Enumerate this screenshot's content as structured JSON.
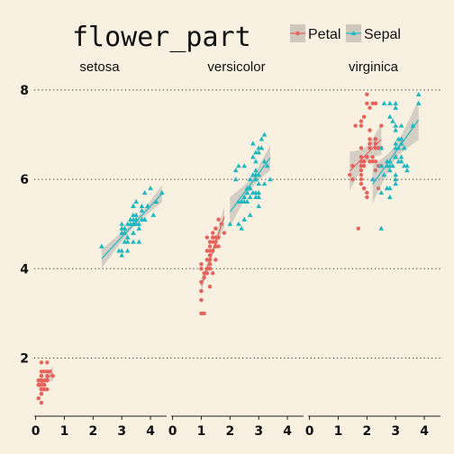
{
  "chart_data": {
    "type": "scatter",
    "title": "flower_part",
    "legend": {
      "placement": "top-right",
      "entries": [
        {
          "name": "Petal",
          "color": "#e8625c",
          "marker": "circle"
        },
        {
          "name": "Sepal",
          "color": "#1fb8c0",
          "marker": "triangle"
        }
      ]
    },
    "facets": [
      "setosa",
      "versicolor",
      "virginica"
    ],
    "xlim": [
      -0.05,
      4.5
    ],
    "ylim": [
      0.7,
      8.3
    ],
    "x_ticks": [
      0,
      1,
      2,
      3,
      4
    ],
    "y_ticks": [
      2,
      4,
      6,
      8
    ],
    "grid": "horizontal dotted",
    "smoother": "linear fit with grey confidence band",
    "series": [
      {
        "facet": "setosa",
        "name": "Petal",
        "points": [
          [
            0.1,
            1.4
          ],
          [
            0.2,
            1.4
          ],
          [
            0.2,
            1.3
          ],
          [
            0.2,
            1.5
          ],
          [
            0.2,
            1.4
          ],
          [
            0.4,
            1.7
          ],
          [
            0.3,
            1.4
          ],
          [
            0.2,
            1.5
          ],
          [
            0.2,
            1.4
          ],
          [
            0.1,
            1.5
          ],
          [
            0.2,
            1.5
          ],
          [
            0.2,
            1.6
          ],
          [
            0.1,
            1.4
          ],
          [
            0.1,
            1.1
          ],
          [
            0.2,
            1.2
          ],
          [
            0.4,
            1.5
          ],
          [
            0.4,
            1.3
          ],
          [
            0.3,
            1.4
          ],
          [
            0.3,
            1.7
          ],
          [
            0.3,
            1.5
          ],
          [
            0.2,
            1.7
          ],
          [
            0.4,
            1.5
          ],
          [
            0.2,
            1.0
          ],
          [
            0.5,
            1.7
          ],
          [
            0.2,
            1.9
          ],
          [
            0.2,
            1.6
          ],
          [
            0.4,
            1.6
          ],
          [
            0.2,
            1.5
          ],
          [
            0.2,
            1.4
          ],
          [
            0.2,
            1.6
          ],
          [
            0.2,
            1.6
          ],
          [
            0.4,
            1.5
          ],
          [
            0.1,
            1.5
          ],
          [
            0.2,
            1.4
          ],
          [
            0.2,
            1.5
          ],
          [
            0.2,
            1.2
          ],
          [
            0.2,
            1.3
          ],
          [
            0.1,
            1.4
          ],
          [
            0.2,
            1.3
          ],
          [
            0.2,
            1.5
          ],
          [
            0.3,
            1.3
          ],
          [
            0.3,
            1.3
          ],
          [
            0.2,
            1.3
          ],
          [
            0.6,
            1.6
          ],
          [
            0.4,
            1.9
          ],
          [
            0.3,
            1.4
          ],
          [
            0.2,
            1.6
          ],
          [
            0.2,
            1.4
          ],
          [
            0.2,
            1.5
          ],
          [
            0.2,
            1.4
          ]
        ]
      },
      {
        "facet": "setosa",
        "name": "Sepal",
        "points": [
          [
            3.5,
            5.1
          ],
          [
            3.0,
            4.9
          ],
          [
            3.2,
            4.7
          ],
          [
            3.1,
            4.6
          ],
          [
            3.6,
            5.0
          ],
          [
            3.9,
            5.4
          ],
          [
            3.4,
            4.6
          ],
          [
            3.4,
            5.0
          ],
          [
            2.9,
            4.4
          ],
          [
            3.1,
            4.9
          ],
          [
            3.7,
            5.4
          ],
          [
            3.4,
            4.8
          ],
          [
            3.0,
            4.8
          ],
          [
            3.0,
            4.3
          ],
          [
            4.0,
            5.8
          ],
          [
            4.4,
            5.7
          ],
          [
            3.9,
            5.4
          ],
          [
            3.5,
            5.1
          ],
          [
            3.8,
            5.7
          ],
          [
            3.8,
            5.1
          ],
          [
            3.4,
            5.4
          ],
          [
            3.7,
            5.1
          ],
          [
            3.6,
            4.6
          ],
          [
            3.3,
            5.1
          ],
          [
            3.4,
            4.8
          ],
          [
            3.0,
            5.0
          ],
          [
            3.4,
            5.0
          ],
          [
            3.5,
            5.2
          ],
          [
            3.4,
            5.2
          ],
          [
            3.2,
            4.7
          ],
          [
            3.1,
            4.8
          ],
          [
            3.4,
            5.4
          ],
          [
            4.1,
            5.2
          ],
          [
            4.2,
            5.5
          ],
          [
            3.1,
            4.9
          ],
          [
            3.2,
            5.0
          ],
          [
            3.5,
            5.5
          ],
          [
            3.6,
            4.9
          ],
          [
            3.0,
            4.4
          ],
          [
            3.4,
            5.1
          ],
          [
            3.5,
            5.0
          ],
          [
            2.3,
            4.5
          ],
          [
            3.2,
            4.4
          ],
          [
            3.5,
            5.0
          ],
          [
            3.8,
            5.1
          ],
          [
            3.0,
            4.8
          ],
          [
            3.8,
            5.1
          ],
          [
            3.2,
            4.6
          ],
          [
            3.7,
            5.3
          ],
          [
            3.3,
            5.0
          ]
        ]
      },
      {
        "facet": "versicolor",
        "name": "Petal",
        "points": [
          [
            1.4,
            4.7
          ],
          [
            1.5,
            4.5
          ],
          [
            1.5,
            4.9
          ],
          [
            1.3,
            4.0
          ],
          [
            1.5,
            4.6
          ],
          [
            1.3,
            4.5
          ],
          [
            1.6,
            4.7
          ],
          [
            1.0,
            3.3
          ],
          [
            1.3,
            4.6
          ],
          [
            1.4,
            3.9
          ],
          [
            1.0,
            3.5
          ],
          [
            1.5,
            4.2
          ],
          [
            1.0,
            4.0
          ],
          [
            1.4,
            4.7
          ],
          [
            1.3,
            3.6
          ],
          [
            1.4,
            4.4
          ],
          [
            1.5,
            4.5
          ],
          [
            1.0,
            4.1
          ],
          [
            1.5,
            4.5
          ],
          [
            1.1,
            3.9
          ],
          [
            1.8,
            4.8
          ],
          [
            1.3,
            4.0
          ],
          [
            1.5,
            4.9
          ],
          [
            1.2,
            4.7
          ],
          [
            1.3,
            4.3
          ],
          [
            1.4,
            4.4
          ],
          [
            1.4,
            4.8
          ],
          [
            1.7,
            5.0
          ],
          [
            1.5,
            4.5
          ],
          [
            1.0,
            3.5
          ],
          [
            1.1,
            3.8
          ],
          [
            1.0,
            3.7
          ],
          [
            1.2,
            3.9
          ],
          [
            1.6,
            5.1
          ],
          [
            1.5,
            4.5
          ],
          [
            1.6,
            4.5
          ],
          [
            1.5,
            4.7
          ],
          [
            1.3,
            4.4
          ],
          [
            1.3,
            4.1
          ],
          [
            1.3,
            4.0
          ],
          [
            1.2,
            4.4
          ],
          [
            1.4,
            4.6
          ],
          [
            1.2,
            4.0
          ],
          [
            1.0,
            3.0
          ],
          [
            1.3,
            4.2
          ],
          [
            1.2,
            4.2
          ],
          [
            1.3,
            4.2
          ],
          [
            1.3,
            4.3
          ],
          [
            1.1,
            3.0
          ],
          [
            1.3,
            4.1
          ]
        ]
      },
      {
        "facet": "versicolor",
        "name": "Sepal",
        "points": [
          [
            3.2,
            7.0
          ],
          [
            3.2,
            6.4
          ],
          [
            3.1,
            6.9
          ],
          [
            2.3,
            5.5
          ],
          [
            2.8,
            6.5
          ],
          [
            2.8,
            5.7
          ],
          [
            3.3,
            6.3
          ],
          [
            2.4,
            4.9
          ],
          [
            2.9,
            6.6
          ],
          [
            2.7,
            5.2
          ],
          [
            2.0,
            5.0
          ],
          [
            3.0,
            5.9
          ],
          [
            2.2,
            6.0
          ],
          [
            2.9,
            6.1
          ],
          [
            2.9,
            5.6
          ],
          [
            3.1,
            6.7
          ],
          [
            3.0,
            5.6
          ],
          [
            2.7,
            5.8
          ],
          [
            2.2,
            6.2
          ],
          [
            2.5,
            5.6
          ],
          [
            3.2,
            5.9
          ],
          [
            2.8,
            6.1
          ],
          [
            2.5,
            6.3
          ],
          [
            2.8,
            6.1
          ],
          [
            2.9,
            6.4
          ],
          [
            3.0,
            6.6
          ],
          [
            2.8,
            6.8
          ],
          [
            3.0,
            6.7
          ],
          [
            2.9,
            6.0
          ],
          [
            2.6,
            5.7
          ],
          [
            2.4,
            5.5
          ],
          [
            2.4,
            5.5
          ],
          [
            2.7,
            5.8
          ],
          [
            2.7,
            6.0
          ],
          [
            3.0,
            5.4
          ],
          [
            3.4,
            6.0
          ],
          [
            3.1,
            6.7
          ],
          [
            2.3,
            6.3
          ],
          [
            3.0,
            5.6
          ],
          [
            2.5,
            5.5
          ],
          [
            2.6,
            5.5
          ],
          [
            3.0,
            6.1
          ],
          [
            2.6,
            5.8
          ],
          [
            2.3,
            5.0
          ],
          [
            2.7,
            5.6
          ],
          [
            3.0,
            5.7
          ],
          [
            2.9,
            5.7
          ],
          [
            2.9,
            6.2
          ],
          [
            2.5,
            5.1
          ],
          [
            2.8,
            5.7
          ]
        ]
      },
      {
        "facet": "virginica",
        "name": "Petal",
        "points": [
          [
            2.5,
            6.3
          ],
          [
            1.9,
            5.8
          ],
          [
            2.1,
            7.1
          ],
          [
            1.8,
            6.3
          ],
          [
            2.2,
            6.5
          ],
          [
            2.1,
            7.6
          ],
          [
            1.7,
            4.9
          ],
          [
            1.8,
            7.3
          ],
          [
            1.8,
            6.7
          ],
          [
            2.5,
            7.2
          ],
          [
            2.0,
            6.5
          ],
          [
            1.9,
            6.4
          ],
          [
            2.1,
            6.8
          ],
          [
            2.0,
            5.7
          ],
          [
            2.4,
            5.8
          ],
          [
            2.3,
            6.4
          ],
          [
            1.8,
            6.5
          ],
          [
            2.2,
            7.7
          ],
          [
            2.3,
            7.7
          ],
          [
            1.5,
            6.0
          ],
          [
            2.3,
            6.9
          ],
          [
            2.0,
            5.6
          ],
          [
            2.0,
            7.7
          ],
          [
            1.8,
            6.3
          ],
          [
            2.1,
            6.7
          ],
          [
            1.8,
            7.2
          ],
          [
            1.8,
            6.2
          ],
          [
            1.8,
            6.1
          ],
          [
            2.1,
            6.4
          ],
          [
            1.6,
            7.2
          ],
          [
            1.9,
            7.4
          ],
          [
            2.0,
            7.9
          ],
          [
            2.2,
            6.4
          ],
          [
            1.5,
            6.3
          ],
          [
            1.4,
            6.1
          ],
          [
            2.3,
            7.7
          ],
          [
            2.4,
            6.3
          ],
          [
            1.8,
            6.4
          ],
          [
            1.8,
            6.0
          ],
          [
            2.1,
            6.9
          ],
          [
            2.4,
            6.7
          ],
          [
            2.3,
            6.9
          ],
          [
            1.9,
            5.8
          ],
          [
            2.3,
            6.8
          ],
          [
            2.5,
            6.7
          ],
          [
            2.3,
            6.7
          ],
          [
            1.9,
            6.3
          ],
          [
            2.0,
            6.5
          ],
          [
            2.3,
            6.2
          ],
          [
            1.8,
            5.9
          ]
        ]
      },
      {
        "facet": "virginica",
        "name": "Sepal",
        "points": [
          [
            3.3,
            6.3
          ],
          [
            2.7,
            5.8
          ],
          [
            3.0,
            7.1
          ],
          [
            2.9,
            6.3
          ],
          [
            3.0,
            6.5
          ],
          [
            3.0,
            7.6
          ],
          [
            2.5,
            4.9
          ],
          [
            2.9,
            7.3
          ],
          [
            2.5,
            6.7
          ],
          [
            3.6,
            7.2
          ],
          [
            3.2,
            6.5
          ],
          [
            2.7,
            6.4
          ],
          [
            3.0,
            6.8
          ],
          [
            2.5,
            5.7
          ],
          [
            2.8,
            5.8
          ],
          [
            3.2,
            6.4
          ],
          [
            3.0,
            6.5
          ],
          [
            3.8,
            7.7
          ],
          [
            2.6,
            7.7
          ],
          [
            2.2,
            6.0
          ],
          [
            3.2,
            6.9
          ],
          [
            2.8,
            5.6
          ],
          [
            2.8,
            7.7
          ],
          [
            2.7,
            6.3
          ],
          [
            3.3,
            6.7
          ],
          [
            3.2,
            7.2
          ],
          [
            2.8,
            6.2
          ],
          [
            3.0,
            6.1
          ],
          [
            2.8,
            6.4
          ],
          [
            3.0,
            7.2
          ],
          [
            2.8,
            7.4
          ],
          [
            3.8,
            7.9
          ],
          [
            2.8,
            6.4
          ],
          [
            2.8,
            6.3
          ],
          [
            2.6,
            6.1
          ],
          [
            3.0,
            7.7
          ],
          [
            3.4,
            6.3
          ],
          [
            3.1,
            6.4
          ],
          [
            3.0,
            6.0
          ],
          [
            3.1,
            6.9
          ],
          [
            3.1,
            6.7
          ],
          [
            3.1,
            6.9
          ],
          [
            2.7,
            5.8
          ],
          [
            3.2,
            6.8
          ],
          [
            3.3,
            6.7
          ],
          [
            3.0,
            6.7
          ],
          [
            2.5,
            6.3
          ],
          [
            3.0,
            6.5
          ],
          [
            3.4,
            6.2
          ],
          [
            3.0,
            5.9
          ]
        ]
      }
    ]
  }
}
